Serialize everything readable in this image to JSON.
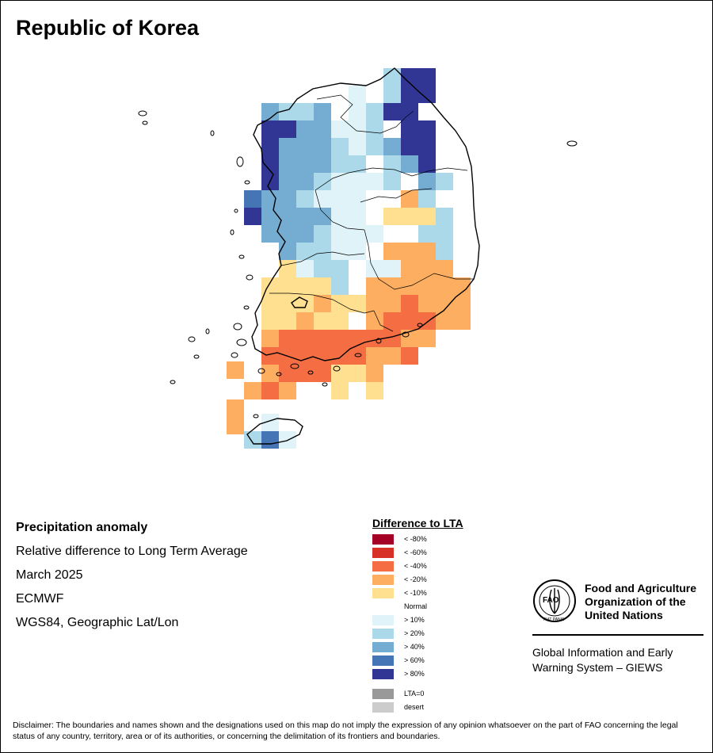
{
  "title": "Republic of Korea",
  "info": {
    "heading": "Precipitation anomaly",
    "line1": "Relative difference to Long Term Average",
    "line2": "March 2025",
    "line3": "ECMWF",
    "line4": "WGS84, Geographic Lat/Lon"
  },
  "legend": {
    "title": "Difference to LTA",
    "items": [
      {
        "label": "< -80%",
        "color": "#a50026"
      },
      {
        "label": "< -60%",
        "color": "#d73027"
      },
      {
        "label": "< -40%",
        "color": "#f46d43"
      },
      {
        "label": "< -20%",
        "color": "#fdae61"
      },
      {
        "label": "< -10%",
        "color": "#fee090"
      },
      {
        "label": "Normal",
        "color": "#ffffff"
      },
      {
        "label": "> 10%",
        "color": "#e0f3f8"
      },
      {
        "label": "> 20%",
        "color": "#abd9e9"
      },
      {
        "label": "> 40%",
        "color": "#74add1"
      },
      {
        "label": "> 60%",
        "color": "#4575b4"
      },
      {
        "label": "> 80%",
        "color": "#313695"
      }
    ],
    "extra": [
      {
        "label": "LTA=0",
        "color": "#999999"
      },
      {
        "label": "desert",
        "color": "#cccccc"
      }
    ]
  },
  "fao": {
    "logo_text": "FAO",
    "logo_motto": "FIAT PANIS",
    "name_line1": "Food and Agriculture",
    "name_line2": "Organization of the",
    "name_line3": "United Nations",
    "giews_line1": "Global Information and Early",
    "giews_line2": "Warning System – GIEWS"
  },
  "disclaimer": "Disclaimer: The boundaries and names shown and the designations used on this map do not imply the expression of any opinion whatsoever on the part of FAO concerning the legal status of any country, territory, area or of its authorities, or concerning the delimitation of its frontiers and boundaries.",
  "grid": {
    "cells": [
      [
        "r1",
        11,
        "fee090"
      ],
      [
        "r1",
        12,
        "fee090"
      ],
      [
        "r2",
        12,
        "fdae61"
      ],
      [
        "r2",
        13,
        "fdae61"
      ],
      [
        "r3",
        12,
        "fee090"
      ],
      [
        "r3",
        13,
        "fee090"
      ],
      [
        "r4",
        12,
        "fdae61"
      ],
      [
        "r4",
        13,
        "fdae61"
      ]
    ]
  }
}
